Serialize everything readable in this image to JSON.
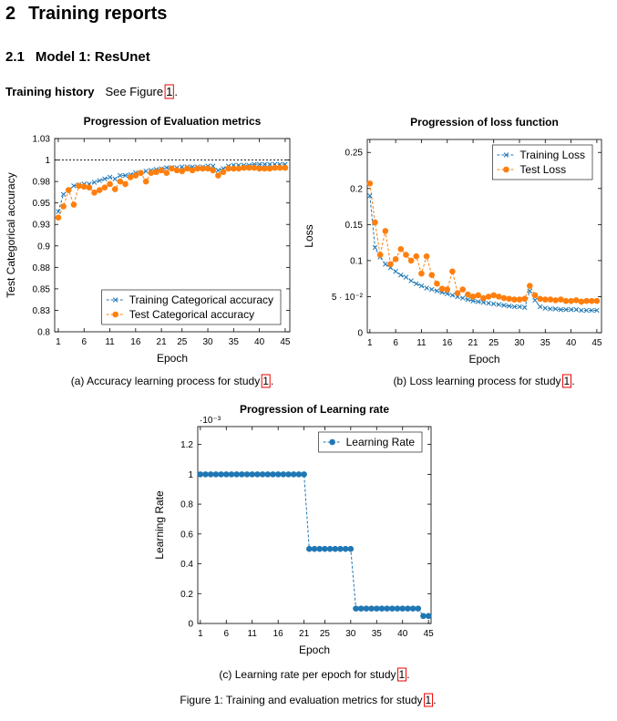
{
  "section": {
    "number": "2",
    "title": "Training reports"
  },
  "subsection": {
    "number": "2.1",
    "title": "Model 1: ResUnet"
  },
  "paragraph": {
    "label": "Training history",
    "text": "See Figure",
    "ref": "1",
    "end": "."
  },
  "figure_caption": {
    "text": "Figure 1: Training and evaluation metrics for study",
    "ref": "1",
    "end": "."
  },
  "chart_data": [
    {
      "type": "line",
      "title": "Progression of Evaluation metrics",
      "xlabel": "Epoch",
      "ylabel": "Test Categorical accuracy",
      "caption": {
        "text": "(a) Accuracy learning process for study",
        "ref": "1",
        "end": "."
      },
      "x": [
        1,
        2,
        3,
        4,
        5,
        6,
        7,
        8,
        9,
        10,
        11,
        12,
        13,
        14,
        15,
        16,
        17,
        18,
        19,
        20,
        21,
        22,
        23,
        24,
        25,
        26,
        27,
        28,
        29,
        30,
        31,
        32,
        33,
        34,
        35,
        36,
        37,
        38,
        39,
        40,
        41,
        42,
        43,
        44,
        45
      ],
      "xlim": [
        0.3,
        45.9
      ],
      "xticks": [
        1,
        6,
        11,
        16,
        21,
        25,
        30,
        35,
        40,
        45
      ],
      "ylim": [
        0.8,
        1.025
      ],
      "yticks": [
        0.8,
        {
          "value": 0.825,
          "label": "0.83"
        },
        0.85,
        {
          "value": 0.875,
          "label": "0.88"
        },
        0.9,
        {
          "value": 0.925,
          "label": "0.93"
        },
        0.95,
        {
          "value": 0.975,
          "label": "0.98"
        },
        1,
        {
          "value": 1.025,
          "label": "1.03"
        }
      ],
      "reference_line": 1,
      "legend": "lower right",
      "series": [
        {
          "name": "Training Categorical accuracy",
          "color": "#1f77b4",
          "marker": "x",
          "values": [
            0.94,
            0.96,
            0.965,
            0.97,
            0.971,
            0.972,
            0.972,
            0.974,
            0.976,
            0.978,
            0.98,
            0.978,
            0.982,
            0.982,
            0.983,
            0.985,
            0.985,
            0.987,
            0.988,
            0.989,
            0.99,
            0.991,
            0.991,
            0.991,
            0.992,
            0.992,
            0.992,
            0.992,
            0.992,
            0.993,
            0.993,
            0.988,
            0.99,
            0.993,
            0.994,
            0.994,
            0.994,
            0.994,
            0.995,
            0.995,
            0.995,
            0.995,
            0.995,
            0.995,
            0.995
          ]
        },
        {
          "name": "Test Categorical accuracy",
          "color": "#ff7f0e",
          "marker": "o",
          "values": [
            0.933,
            0.946,
            0.965,
            0.948,
            0.97,
            0.969,
            0.968,
            0.962,
            0.965,
            0.968,
            0.972,
            0.966,
            0.975,
            0.972,
            0.98,
            0.982,
            0.985,
            0.975,
            0.985,
            0.986,
            0.988,
            0.985,
            0.99,
            0.988,
            0.987,
            0.99,
            0.988,
            0.99,
            0.99,
            0.99,
            0.988,
            0.982,
            0.986,
            0.99,
            0.99,
            0.99,
            0.991,
            0.991,
            0.991,
            0.99,
            0.99,
            0.99,
            0.991,
            0.991,
            0.991
          ]
        }
      ]
    },
    {
      "type": "line",
      "title": "Progression of loss function",
      "xlabel": "Epoch",
      "ylabel": "Loss",
      "caption": {
        "text": "(b) Loss learning process for study",
        "ref": "1",
        "end": "."
      },
      "x": [
        1,
        2,
        3,
        4,
        5,
        6,
        7,
        8,
        9,
        10,
        11,
        12,
        13,
        14,
        15,
        16,
        17,
        18,
        19,
        20,
        21,
        22,
        23,
        24,
        25,
        26,
        27,
        28,
        29,
        30,
        31,
        32,
        33,
        34,
        35,
        36,
        37,
        38,
        39,
        40,
        41,
        42,
        43,
        44,
        45
      ],
      "xlim": [
        0.5,
        45.9
      ],
      "xticks": [
        1,
        6,
        11,
        16,
        21,
        25,
        30,
        35,
        40,
        45
      ],
      "ylim": [
        0,
        0.268
      ],
      "yticks": [
        0,
        {
          "value": 0.05,
          "label": "5 · 10⁻²"
        },
        0.1,
        0.15,
        0.2,
        0.25
      ],
      "legend": "upper right",
      "series": [
        {
          "name": "Training Loss",
          "color": "#1f77b4",
          "marker": "x",
          "values": [
            0.19,
            0.118,
            0.105,
            0.095,
            0.09,
            0.085,
            0.08,
            0.077,
            0.072,
            0.068,
            0.065,
            0.062,
            0.06,
            0.058,
            0.056,
            0.054,
            0.052,
            0.05,
            0.048,
            0.046,
            0.044,
            0.043,
            0.042,
            0.041,
            0.04,
            0.039,
            0.038,
            0.037,
            0.036,
            0.036,
            0.035,
            0.058,
            0.045,
            0.036,
            0.034,
            0.033,
            0.033,
            0.032,
            0.032,
            0.032,
            0.032,
            0.031,
            0.031,
            0.031,
            0.031
          ]
        },
        {
          "name": "Test Loss",
          "color": "#ff7f0e",
          "marker": "o",
          "values": [
            0.207,
            0.153,
            0.108,
            0.141,
            0.095,
            0.102,
            0.116,
            0.108,
            0.1,
            0.106,
            0.082,
            0.106,
            0.08,
            0.068,
            0.061,
            0.06,
            0.085,
            0.055,
            0.06,
            0.053,
            0.05,
            0.052,
            0.048,
            0.05,
            0.052,
            0.05,
            0.048,
            0.047,
            0.046,
            0.046,
            0.047,
            0.065,
            0.052,
            0.047,
            0.046,
            0.046,
            0.045,
            0.046,
            0.044,
            0.044,
            0.045,
            0.043,
            0.044,
            0.044,
            0.044
          ]
        }
      ]
    },
    {
      "type": "line",
      "title": "Progression of Learning rate",
      "xlabel": "Epoch",
      "ylabel": "Learning Rate",
      "scale_label": "·10⁻³",
      "caption": {
        "text": "(c) Learning rate per epoch for study",
        "ref": "1",
        "end": "."
      },
      "x": [
        1,
        2,
        3,
        4,
        5,
        6,
        7,
        8,
        9,
        10,
        11,
        12,
        13,
        14,
        15,
        16,
        17,
        18,
        19,
        20,
        21,
        22,
        23,
        24,
        25,
        26,
        27,
        28,
        29,
        30,
        31,
        32,
        33,
        34,
        35,
        36,
        37,
        38,
        39,
        40,
        41,
        42,
        43,
        44,
        45
      ],
      "xlim": [
        0.5,
        45.5
      ],
      "xticks": [
        1,
        6,
        11,
        16,
        21,
        25,
        30,
        35,
        40,
        45
      ],
      "ylim": [
        0,
        1.32
      ],
      "yticks": [
        0,
        0.2,
        0.4,
        0.6,
        0.8,
        1,
        1.2
      ],
      "legend": "upper right",
      "series": [
        {
          "name": "Learning Rate",
          "color": "#1f77b4",
          "marker": "o",
          "values": [
            1,
            1,
            1,
            1,
            1,
            1,
            1,
            1,
            1,
            1,
            1,
            1,
            1,
            1,
            1,
            1,
            1,
            1,
            1,
            1,
            1,
            0.5,
            0.5,
            0.5,
            0.5,
            0.5,
            0.5,
            0.5,
            0.5,
            0.5,
            0.1,
            0.1,
            0.1,
            0.1,
            0.1,
            0.1,
            0.1,
            0.1,
            0.1,
            0.1,
            0.1,
            0.1,
            0.1,
            0.05,
            0.05
          ]
        }
      ]
    }
  ]
}
